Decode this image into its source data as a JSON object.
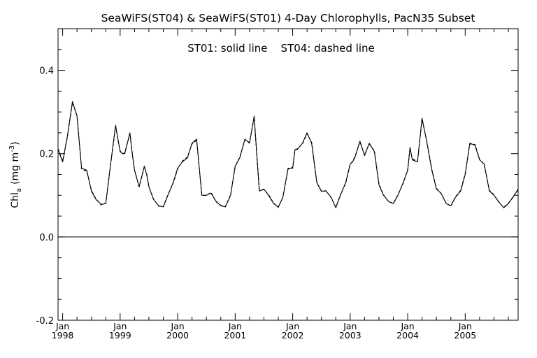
{
  "chart_data": {
    "type": "line",
    "title": "SeaWiFS(ST04) & SeaWiFS(ST01) 4-Day Chlorophylls, PacN35 Subset",
    "annotation": "ST01: solid line    ST04: dashed line",
    "ylabel_main": "Chl",
    "ylabel_sub": "a",
    "ylabel_unit": "(mg m",
    "ylabel_exp": "-3",
    "ylabel_close": ")",
    "ylim": [
      -0.2,
      0.5
    ],
    "yticks": [
      -0.2,
      0.0,
      0.2,
      0.4
    ],
    "ytick_labels": [
      "-0.2",
      "0.0",
      "0.2",
      "0.4"
    ],
    "xlim": [
      1997.92,
      2005.92
    ],
    "xticks": [
      {
        "value": 1998,
        "month": "Jan",
        "year": "1998"
      },
      {
        "value": 1999,
        "month": "Jan",
        "year": "1999"
      },
      {
        "value": 2000,
        "month": "Jan",
        "year": "2000"
      },
      {
        "value": 2001,
        "month": "Jan",
        "year": "2001"
      },
      {
        "value": 2002,
        "month": "Jan",
        "year": "2002"
      },
      {
        "value": 2003,
        "month": "Jan",
        "year": "2003"
      },
      {
        "value": 2004,
        "month": "Jan",
        "year": "2004"
      },
      {
        "value": 2005,
        "month": "Jan",
        "year": "2005"
      }
    ],
    "reference_line": 0.0,
    "series": [
      {
        "name": "ST01",
        "style": "solid",
        "x": [
          1997.92,
          1998.0,
          1998.08,
          1998.17,
          1998.25,
          1998.33,
          1998.42,
          1998.5,
          1998.58,
          1998.67,
          1998.75,
          1998.83,
          1998.92,
          1999.0,
          1999.04,
          1999.08,
          1999.17,
          1999.21,
          1999.25,
          1999.33,
          1999.42,
          1999.46,
          1999.5,
          1999.58,
          1999.67,
          1999.75,
          1999.83,
          1999.92,
          2000.0,
          2000.08,
          2000.17,
          2000.25,
          2000.33,
          2000.42,
          2000.5,
          2000.58,
          2000.67,
          2000.75,
          2000.83,
          2000.92,
          2001.0,
          2001.08,
          2001.17,
          2001.25,
          2001.33,
          2001.42,
          2001.5,
          2001.58,
          2001.67,
          2001.75,
          2001.83,
          2001.92,
          2002.0,
          2002.04,
          2002.08,
          2002.17,
          2002.25,
          2002.33,
          2002.42,
          2002.5,
          2002.58,
          2002.67,
          2002.75,
          2002.83,
          2002.92,
          2003.0,
          2003.04,
          2003.08,
          2003.17,
          2003.25,
          2003.33,
          2003.42,
          2003.5,
          2003.58,
          2003.67,
          2003.75,
          2003.83,
          2003.92,
          2004.0,
          2004.04,
          2004.08,
          2004.17,
          2004.25,
          2004.33,
          2004.42,
          2004.5,
          2004.58,
          2004.67,
          2004.75,
          2004.83,
          2004.92,
          2005.0,
          2005.08,
          2005.17,
          2005.25,
          2005.33,
          2005.42,
          2005.5,
          2005.58,
          2005.67,
          2005.75,
          2005.83,
          2005.92
        ],
        "values": [
          0.21,
          0.18,
          0.24,
          0.325,
          0.29,
          0.165,
          0.16,
          0.11,
          0.09,
          0.078,
          0.08,
          0.17,
          0.268,
          0.205,
          0.2,
          0.2,
          0.25,
          0.2,
          0.16,
          0.12,
          0.17,
          0.15,
          0.12,
          0.09,
          0.075,
          0.072,
          0.1,
          0.13,
          0.165,
          0.18,
          0.19,
          0.225,
          0.235,
          0.1,
          0.1,
          0.105,
          0.085,
          0.075,
          0.072,
          0.1,
          0.17,
          0.19,
          0.235,
          0.225,
          0.29,
          0.11,
          0.115,
          0.1,
          0.08,
          0.072,
          0.095,
          0.165,
          0.165,
          0.21,
          0.21,
          0.225,
          0.25,
          0.225,
          0.13,
          0.11,
          0.11,
          0.095,
          0.07,
          0.1,
          0.13,
          0.175,
          0.18,
          0.19,
          0.23,
          0.195,
          0.225,
          0.205,
          0.125,
          0.1,
          0.085,
          0.08,
          0.1,
          0.13,
          0.16,
          0.215,
          0.185,
          0.18,
          0.285,
          0.23,
          0.16,
          0.115,
          0.105,
          0.08,
          0.075,
          0.095,
          0.11,
          0.15,
          0.225,
          0.22,
          0.185,
          0.175,
          0.11,
          0.1,
          0.085,
          0.07,
          0.08,
          0.095,
          0.115
        ]
      },
      {
        "name": "ST04",
        "style": "dashed",
        "x": [
          1997.92,
          1998.0,
          1998.08,
          1998.17,
          1998.25,
          1998.33,
          1998.42,
          1998.5,
          1998.58,
          1998.67,
          1998.75,
          1998.83,
          1998.92,
          1999.0,
          1999.04,
          1999.08,
          1999.17,
          1999.21,
          1999.25,
          1999.33,
          1999.42,
          1999.46,
          1999.5,
          1999.58,
          1999.67,
          1999.75,
          1999.83,
          1999.92,
          2000.0,
          2000.08,
          2000.17,
          2000.25,
          2000.33,
          2000.42,
          2000.5,
          2000.58,
          2000.67,
          2000.75,
          2000.83,
          2000.92,
          2001.0,
          2001.08,
          2001.17,
          2001.25,
          2001.33,
          2001.42,
          2001.5,
          2001.58,
          2001.67,
          2001.75,
          2001.83,
          2001.92,
          2002.0,
          2002.04,
          2002.08,
          2002.17,
          2002.25,
          2002.33,
          2002.42,
          2002.5,
          2002.58,
          2002.67,
          2002.75,
          2002.83,
          2002.92,
          2003.0,
          2003.04,
          2003.08,
          2003.17,
          2003.25,
          2003.33,
          2003.42,
          2003.5,
          2003.58,
          2003.67,
          2003.75,
          2003.83,
          2003.92,
          2004.0,
          2004.04,
          2004.08,
          2004.17,
          2004.25,
          2004.33,
          2004.42,
          2004.5,
          2004.58,
          2004.67,
          2004.75,
          2004.83,
          2004.92,
          2005.0,
          2005.08,
          2005.17,
          2005.25,
          2005.33,
          2005.42,
          2005.5,
          2005.58,
          2005.67,
          2005.75,
          2005.83,
          2005.92
        ],
        "values": [
          0.212,
          0.182,
          0.238,
          0.322,
          0.292,
          0.163,
          0.158,
          0.112,
          0.091,
          0.077,
          0.081,
          0.168,
          0.265,
          0.207,
          0.199,
          0.202,
          0.247,
          0.202,
          0.161,
          0.121,
          0.168,
          0.152,
          0.121,
          0.091,
          0.074,
          0.073,
          0.101,
          0.128,
          0.163,
          0.182,
          0.192,
          0.223,
          0.232,
          0.102,
          0.099,
          0.107,
          0.084,
          0.076,
          0.073,
          0.101,
          0.168,
          0.192,
          0.233,
          0.227,
          0.287,
          0.112,
          0.113,
          0.102,
          0.081,
          0.071,
          0.096,
          0.163,
          0.167,
          0.208,
          0.212,
          0.223,
          0.248,
          0.227,
          0.132,
          0.109,
          0.111,
          0.094,
          0.071,
          0.101,
          0.128,
          0.173,
          0.182,
          0.192,
          0.228,
          0.197,
          0.223,
          0.207,
          0.127,
          0.101,
          0.084,
          0.081,
          0.101,
          0.128,
          0.162,
          0.213,
          0.187,
          0.182,
          0.282,
          0.232,
          0.162,
          0.117,
          0.104,
          0.081,
          0.074,
          0.096,
          0.112,
          0.152,
          0.223,
          0.222,
          0.187,
          0.173,
          0.112,
          0.101,
          0.084,
          0.071,
          0.081,
          0.096,
          0.113
        ]
      }
    ]
  }
}
